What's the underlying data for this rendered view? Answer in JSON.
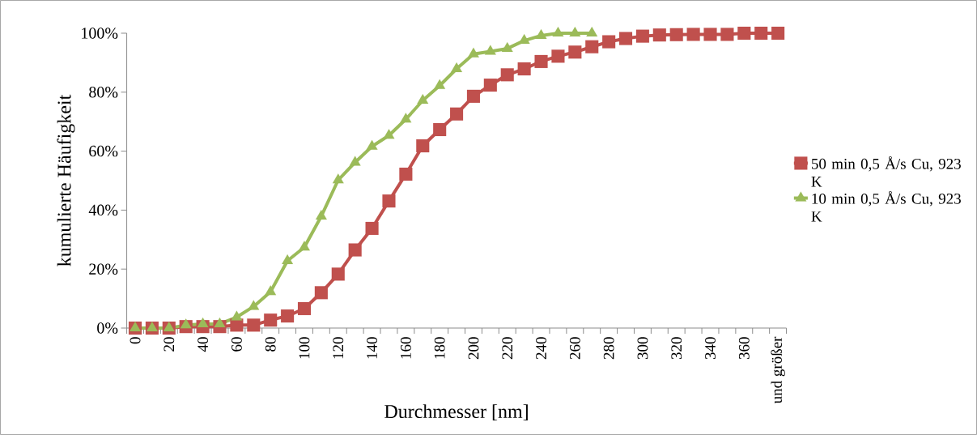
{
  "chart_data": {
    "type": "line",
    "xlabel": "Durchmesser [nm]",
    "ylabel": "kumulierte Häufigkeit",
    "categories": [
      "0",
      null,
      "20",
      null,
      "40",
      null,
      "60",
      null,
      "80",
      null,
      "100",
      null,
      "120",
      null,
      "140",
      null,
      "160",
      null,
      "180",
      null,
      "200",
      null,
      "220",
      null,
      "240",
      null,
      "260",
      null,
      "280",
      null,
      "300",
      null,
      "320",
      null,
      "340",
      null,
      "360",
      null,
      "und größer"
    ],
    "ylim": [
      0,
      100
    ],
    "yticks": [
      {
        "value": 0,
        "label": "0%"
      },
      {
        "value": 20,
        "label": "20%"
      },
      {
        "value": 40,
        "label": "40%"
      },
      {
        "value": 60,
        "label": "60%"
      },
      {
        "value": 80,
        "label": "80%"
      },
      {
        "value": 100,
        "label": "100%"
      }
    ],
    "grid": false,
    "legend": "right",
    "series": [
      {
        "name": "50 min 0,5 Å/s Cu, 923 K",
        "color": "#c0504d",
        "marker": "square",
        "values": [
          0,
          0,
          0,
          0.5,
          0.5,
          0.5,
          1,
          1,
          2.7,
          4.1,
          6.6,
          12,
          18.3,
          26.5,
          33.8,
          43.1,
          52.2,
          61.8,
          67.3,
          72.6,
          78.6,
          82.4,
          85.9,
          87.9,
          90.4,
          92.2,
          93.6,
          95.4,
          97.1,
          98.2,
          99,
          99.4,
          99.5,
          99.6,
          99.6,
          99.6,
          100,
          100,
          100
        ]
      },
      {
        "name": "10 min 0,5 Å/s Cu, 923 K",
        "color": "#9bbb59",
        "marker": "triangle",
        "values": [
          0,
          0,
          0,
          1,
          1.4,
          1.4,
          3.7,
          7.3,
          12.3,
          22.8,
          27.4,
          37.9,
          50.2,
          56.2,
          61.6,
          65.3,
          70.8,
          77.2,
          82.2,
          87.9,
          92.9,
          93.8,
          94.8,
          97.5,
          99.2,
          100,
          100,
          100,
          null,
          null,
          null,
          null,
          null,
          null,
          null,
          null,
          null,
          null,
          null
        ]
      }
    ]
  }
}
